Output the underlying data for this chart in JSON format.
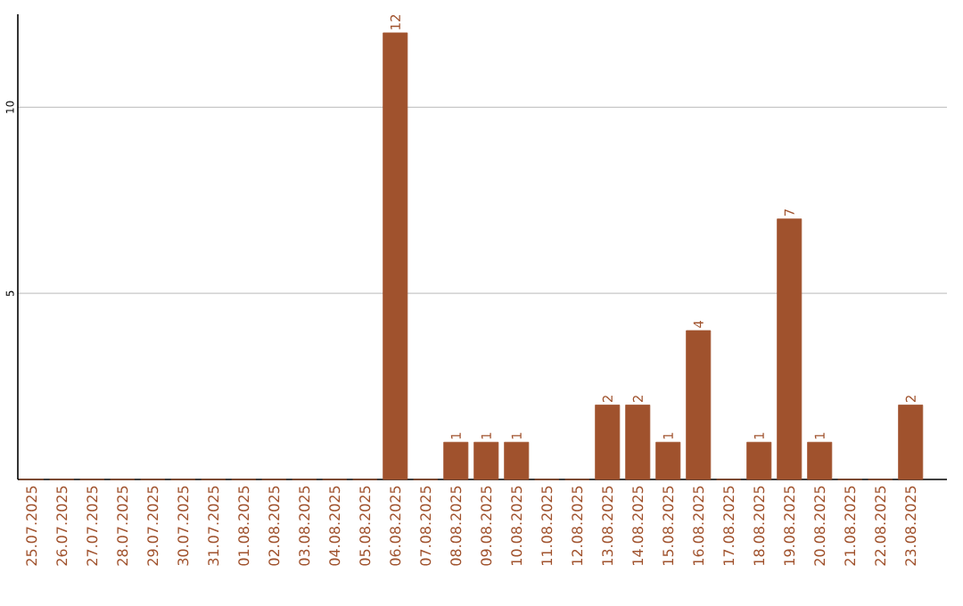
{
  "chart_data": {
    "type": "bar",
    "categories": [
      "25.07.2025",
      "26.07.2025",
      "27.07.2025",
      "28.07.2025",
      "29.07.2025",
      "30.07.2025",
      "31.07.2025",
      "01.08.2025",
      "02.08.2025",
      "03.08.2025",
      "04.08.2025",
      "05.08.2025",
      "06.08.2025",
      "07.08.2025",
      "08.08.2025",
      "09.08.2025",
      "10.08.2025",
      "11.08.2025",
      "12.08.2025",
      "13.08.2025",
      "14.08.2025",
      "15.08.2025",
      "16.08.2025",
      "17.08.2025",
      "18.08.2025",
      "19.08.2025",
      "20.08.2025",
      "21.08.2025",
      "22.08.2025",
      "23.08.2025"
    ],
    "values": [
      0,
      0,
      0,
      0,
      0,
      0,
      0,
      0,
      0,
      0,
      0,
      0,
      12,
      0,
      1,
      1,
      1,
      0,
      0,
      2,
      2,
      1,
      4,
      0,
      1,
      7,
      1,
      0,
      0,
      2
    ],
    "value_labels": [
      null,
      null,
      null,
      null,
      null,
      null,
      null,
      null,
      null,
      null,
      null,
      null,
      "12",
      null,
      "1",
      "1",
      "1",
      null,
      null,
      "2",
      "2",
      "1",
      "4",
      null,
      "1",
      "7",
      "1",
      null,
      null,
      "2"
    ],
    "color": "#a0522d",
    "ylim": [
      0,
      12.5
    ],
    "yticks": [
      5,
      10
    ],
    "grid": "y"
  }
}
